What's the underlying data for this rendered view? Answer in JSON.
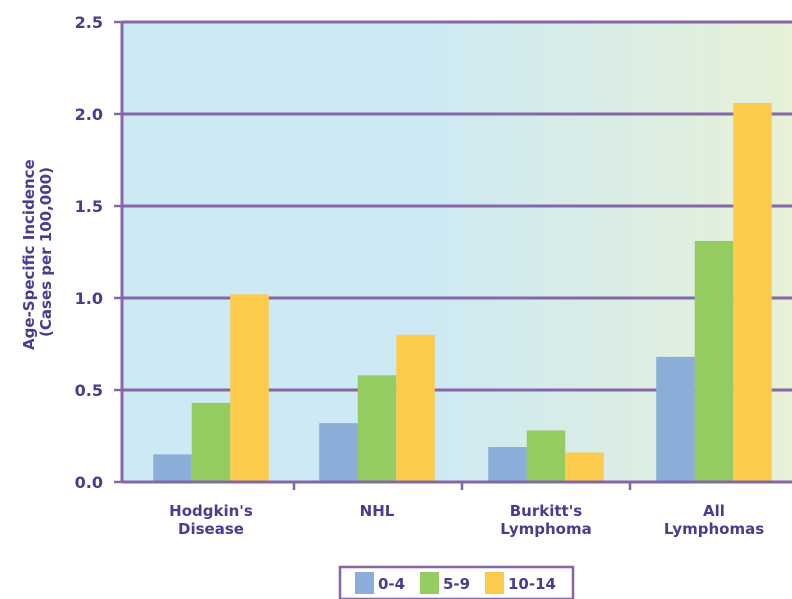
{
  "chart_data": {
    "type": "bar",
    "title": "",
    "xlabel": "",
    "ylabel_lines": [
      "Age-Specific Incidence",
      "(Cases per 100,000)"
    ],
    "categories": [
      [
        "Hodgkin's",
        "Disease"
      ],
      [
        "NHL"
      ],
      [
        "Burkitt's",
        "Lymphoma"
      ],
      [
        "All",
        "Lymphomas"
      ]
    ],
    "series": [
      {
        "name": "0-4",
        "color": "#8aaed8",
        "values": [
          0.15,
          0.32,
          0.19,
          0.68
        ]
      },
      {
        "name": "5-9",
        "color": "#95cc62",
        "values": [
          0.43,
          0.58,
          0.28,
          1.31
        ]
      },
      {
        "name": "10-14",
        "color": "#fdcb4c",
        "values": [
          1.02,
          0.8,
          0.16,
          2.06
        ]
      }
    ],
    "ylim": [
      0,
      2.5
    ],
    "yticks": [
      "0.0",
      "0.5",
      "1.0",
      "1.5",
      "2.0",
      "2.5"
    ],
    "grid": true,
    "legend_position": "bottom-center",
    "colors": {
      "axis": "#8567a8",
      "text": "#4a3d8f",
      "bg_left": "#cde9f4",
      "bg_right": "#e6f1d7"
    }
  }
}
